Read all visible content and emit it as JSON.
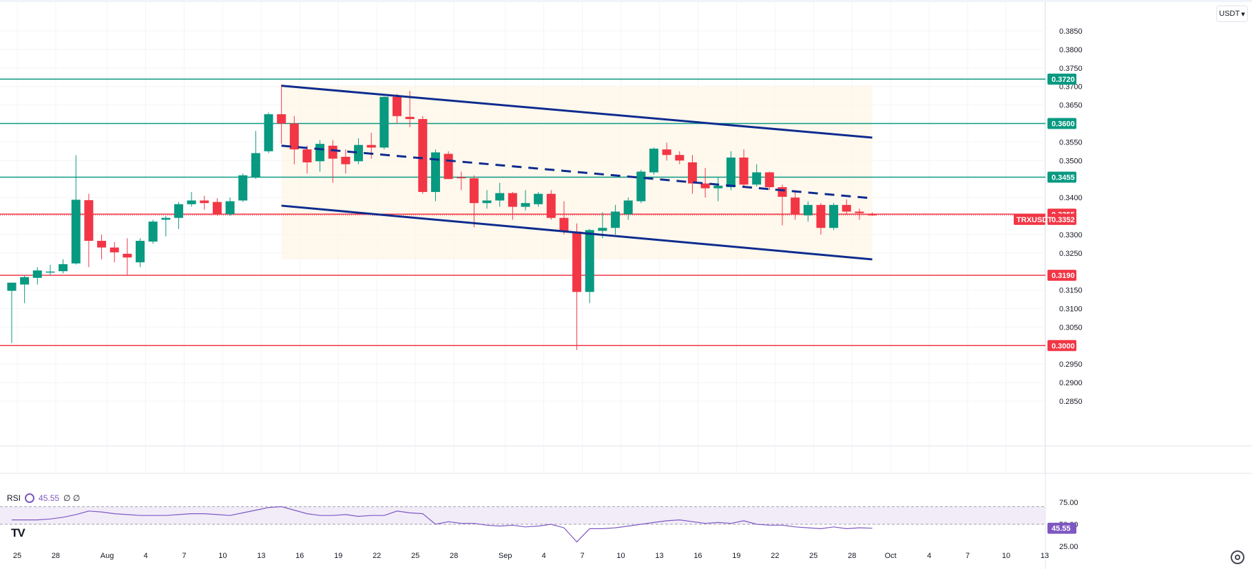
{
  "toolbar": {
    "currency_label": "USDT",
    "currency_caret": "▾"
  },
  "indicator": {
    "name": "RSI",
    "value_text": "45.55",
    "extra_text": "∅ ∅"
  },
  "logo_text": "TV",
  "colors": {
    "up": "#089981",
    "down": "#f23645",
    "channel": "#0d2b8e",
    "support_green": "#089981",
    "support_red": "#f23645",
    "rsi_line": "#7e57c2",
    "rsi_band": "#ede7f6",
    "channel_fill": "#fdf5e6"
  },
  "chart_data": {
    "type": "candlestick",
    "symbol": "TRXUSDT",
    "quote_currency": "USDT",
    "ylim": [
      0.281,
      0.389
    ],
    "y_ticks": [
      "0.3850",
      "0.3800",
      "0.3750",
      "0.3700",
      "0.3650",
      "0.3550",
      "0.3500",
      "0.3400",
      "0.3300",
      "0.3250",
      "0.3150",
      "0.3100",
      "0.3050",
      "0.2950",
      "0.2900",
      "0.2850"
    ],
    "x_ticks": [
      {
        "label": "25",
        "day": 0
      },
      {
        "label": "28",
        "day": 3
      },
      {
        "label": "Aug",
        "day": 7
      },
      {
        "label": "4",
        "day": 10
      },
      {
        "label": "7",
        "day": 13
      },
      {
        "label": "10",
        "day": 16
      },
      {
        "label": "13",
        "day": 19
      },
      {
        "label": "16",
        "day": 22
      },
      {
        "label": "19",
        "day": 25
      },
      {
        "label": "22",
        "day": 28
      },
      {
        "label": "25",
        "day": 31
      },
      {
        "label": "28",
        "day": 34
      },
      {
        "label": "Sep",
        "day": 38
      },
      {
        "label": "4",
        "day": 41
      },
      {
        "label": "7",
        "day": 44
      },
      {
        "label": "10",
        "day": 47
      },
      {
        "label": "13",
        "day": 50
      },
      {
        "label": "16",
        "day": 53
      },
      {
        "label": "19",
        "day": 56
      },
      {
        "label": "22",
        "day": 59
      },
      {
        "label": "25",
        "day": 62
      },
      {
        "label": "28",
        "day": 65
      },
      {
        "label": "Oct",
        "day": 68
      },
      {
        "label": "4",
        "day": 71
      },
      {
        "label": "7",
        "day": 74
      },
      {
        "label": "10",
        "day": 77
      },
      {
        "label": "13",
        "day": 80
      }
    ],
    "candles": [
      {
        "d": "Jul 25",
        "o": 0.3148,
        "h": 0.316,
        "l": 0.3007,
        "c": 0.317
      },
      {
        "d": "Jul 26",
        "o": 0.3165,
        "h": 0.319,
        "l": 0.3115,
        "c": 0.3185
      },
      {
        "d": "Jul 27",
        "o": 0.3183,
        "h": 0.3212,
        "l": 0.3165,
        "c": 0.3203
      },
      {
        "d": "Jul 28",
        "o": 0.32,
        "h": 0.3218,
        "l": 0.319,
        "c": 0.32
      },
      {
        "d": "Jul 29",
        "o": 0.3201,
        "h": 0.3233,
        "l": 0.3195,
        "c": 0.322
      },
      {
        "d": "Jul 30",
        "o": 0.3222,
        "h": 0.3514,
        "l": 0.3219,
        "c": 0.3394
      },
      {
        "d": "Jul 31",
        "o": 0.3393,
        "h": 0.341,
        "l": 0.3212,
        "c": 0.3283
      },
      {
        "d": "Aug 1",
        "o": 0.3283,
        "h": 0.33,
        "l": 0.3233,
        "c": 0.3265
      },
      {
        "d": "Aug 2",
        "o": 0.3265,
        "h": 0.328,
        "l": 0.3225,
        "c": 0.3252
      },
      {
        "d": "Aug 3",
        "o": 0.3248,
        "h": 0.329,
        "l": 0.319,
        "c": 0.3238
      },
      {
        "d": "Aug 4",
        "o": 0.3225,
        "h": 0.329,
        "l": 0.3212,
        "c": 0.3283
      },
      {
        "d": "Aug 5",
        "o": 0.3281,
        "h": 0.334,
        "l": 0.3275,
        "c": 0.3335
      },
      {
        "d": "Aug 6",
        "o": 0.334,
        "h": 0.335,
        "l": 0.3295,
        "c": 0.3345
      },
      {
        "d": "Aug 7",
        "o": 0.3345,
        "h": 0.3388,
        "l": 0.3315,
        "c": 0.3382
      },
      {
        "d": "Aug 8",
        "o": 0.3382,
        "h": 0.3415,
        "l": 0.3375,
        "c": 0.3392
      },
      {
        "d": "Aug 9",
        "o": 0.3392,
        "h": 0.3405,
        "l": 0.3367,
        "c": 0.3385
      },
      {
        "d": "Aug 10",
        "o": 0.3388,
        "h": 0.3398,
        "l": 0.335,
        "c": 0.3355
      },
      {
        "d": "Aug 11",
        "o": 0.3355,
        "h": 0.34,
        "l": 0.335,
        "c": 0.339
      },
      {
        "d": "Aug 12",
        "o": 0.3392,
        "h": 0.3465,
        "l": 0.3388,
        "c": 0.346
      },
      {
        "d": "Aug 13",
        "o": 0.3455,
        "h": 0.358,
        "l": 0.345,
        "c": 0.352
      },
      {
        "d": "Aug 14",
        "o": 0.3525,
        "h": 0.363,
        "l": 0.352,
        "c": 0.3625
      },
      {
        "d": "Aug 15",
        "o": 0.3625,
        "h": 0.3705,
        "l": 0.3545,
        "c": 0.36
      },
      {
        "d": "Aug 16",
        "o": 0.36,
        "h": 0.362,
        "l": 0.349,
        "c": 0.353
      },
      {
        "d": "Aug 17",
        "o": 0.353,
        "h": 0.354,
        "l": 0.3465,
        "c": 0.3495
      },
      {
        "d": "Aug 18",
        "o": 0.3498,
        "h": 0.3555,
        "l": 0.347,
        "c": 0.3545
      },
      {
        "d": "Aug 19",
        "o": 0.354,
        "h": 0.3555,
        "l": 0.344,
        "c": 0.3505
      },
      {
        "d": "Aug 20",
        "o": 0.351,
        "h": 0.353,
        "l": 0.3465,
        "c": 0.349
      },
      {
        "d": "Aug 21",
        "o": 0.3498,
        "h": 0.356,
        "l": 0.349,
        "c": 0.3542
      },
      {
        "d": "Aug 22",
        "o": 0.3542,
        "h": 0.3575,
        "l": 0.3505,
        "c": 0.3535
      },
      {
        "d": "Aug 23",
        "o": 0.3535,
        "h": 0.3673,
        "l": 0.353,
        "c": 0.3672
      },
      {
        "d": "Aug 24",
        "o": 0.3672,
        "h": 0.368,
        "l": 0.36,
        "c": 0.362
      },
      {
        "d": "Aug 25",
        "o": 0.3618,
        "h": 0.3688,
        "l": 0.359,
        "c": 0.3612
      },
      {
        "d": "Aug 26",
        "o": 0.3612,
        "h": 0.362,
        "l": 0.341,
        "c": 0.3415
      },
      {
        "d": "Aug 27",
        "o": 0.3415,
        "h": 0.353,
        "l": 0.339,
        "c": 0.3522
      },
      {
        "d": "Aug 28",
        "o": 0.3518,
        "h": 0.3525,
        "l": 0.345,
        "c": 0.345
      },
      {
        "d": "Aug 29",
        "o": 0.3455,
        "h": 0.347,
        "l": 0.342,
        "c": 0.3452
      },
      {
        "d": "Aug 30",
        "o": 0.3452,
        "h": 0.346,
        "l": 0.332,
        "c": 0.3385
      },
      {
        "d": "Aug 31",
        "o": 0.3385,
        "h": 0.342,
        "l": 0.337,
        "c": 0.3392
      },
      {
        "d": "Sep 1",
        "o": 0.3392,
        "h": 0.344,
        "l": 0.3375,
        "c": 0.3412
      },
      {
        "d": "Sep 2",
        "o": 0.3412,
        "h": 0.3415,
        "l": 0.334,
        "c": 0.3375
      },
      {
        "d": "Sep 3",
        "o": 0.3375,
        "h": 0.342,
        "l": 0.3365,
        "c": 0.3385
      },
      {
        "d": "Sep 4",
        "o": 0.3382,
        "h": 0.3415,
        "l": 0.3375,
        "c": 0.341
      },
      {
        "d": "Sep 5",
        "o": 0.341,
        "h": 0.342,
        "l": 0.334,
        "c": 0.3345
      },
      {
        "d": "Sep 6",
        "o": 0.3345,
        "h": 0.339,
        "l": 0.33,
        "c": 0.331
      },
      {
        "d": "Sep 7",
        "o": 0.3308,
        "h": 0.333,
        "l": 0.2988,
        "c": 0.3145
      },
      {
        "d": "Sep 8",
        "o": 0.3145,
        "h": 0.3315,
        "l": 0.3115,
        "c": 0.3312
      },
      {
        "d": "Sep 9",
        "o": 0.331,
        "h": 0.336,
        "l": 0.329,
        "c": 0.3318
      },
      {
        "d": "Sep 10",
        "o": 0.3318,
        "h": 0.338,
        "l": 0.33,
        "c": 0.3362
      },
      {
        "d": "Sep 11",
        "o": 0.3355,
        "h": 0.34,
        "l": 0.334,
        "c": 0.3392
      },
      {
        "d": "Sep 12",
        "o": 0.339,
        "h": 0.3475,
        "l": 0.3385,
        "c": 0.347
      },
      {
        "d": "Sep 13",
        "o": 0.3468,
        "h": 0.3535,
        "l": 0.3462,
        "c": 0.3532
      },
      {
        "d": "Sep 14",
        "o": 0.353,
        "h": 0.3548,
        "l": 0.35,
        "c": 0.3515
      },
      {
        "d": "Sep 15",
        "o": 0.3515,
        "h": 0.3525,
        "l": 0.349,
        "c": 0.35
      },
      {
        "d": "Sep 16",
        "o": 0.3495,
        "h": 0.3515,
        "l": 0.341,
        "c": 0.3438
      },
      {
        "d": "Sep 17",
        "o": 0.3438,
        "h": 0.348,
        "l": 0.34,
        "c": 0.3425
      },
      {
        "d": "Sep 18",
        "o": 0.3425,
        "h": 0.3455,
        "l": 0.339,
        "c": 0.3432
      },
      {
        "d": "Sep 19",
        "o": 0.3428,
        "h": 0.3525,
        "l": 0.342,
        "c": 0.3508
      },
      {
        "d": "Sep 20",
        "o": 0.3508,
        "h": 0.353,
        "l": 0.3428,
        "c": 0.3435
      },
      {
        "d": "Sep 21",
        "o": 0.3435,
        "h": 0.349,
        "l": 0.343,
        "c": 0.3468
      },
      {
        "d": "Sep 22",
        "o": 0.3468,
        "h": 0.347,
        "l": 0.342,
        "c": 0.3428
      },
      {
        "d": "Sep 23",
        "o": 0.3428,
        "h": 0.3435,
        "l": 0.3325,
        "c": 0.3402
      },
      {
        "d": "Sep 24",
        "o": 0.34,
        "h": 0.342,
        "l": 0.334,
        "c": 0.3355
      },
      {
        "d": "Sep 25",
        "o": 0.3352,
        "h": 0.339,
        "l": 0.3335,
        "c": 0.338
      },
      {
        "d": "Sep 26",
        "o": 0.338,
        "h": 0.3385,
        "l": 0.33,
        "c": 0.3318
      },
      {
        "d": "Sep 27",
        "o": 0.3318,
        "h": 0.3385,
        "l": 0.3312,
        "c": 0.338
      },
      {
        "d": "Sep 28",
        "o": 0.338,
        "h": 0.3395,
        "l": 0.3355,
        "c": 0.3362
      },
      {
        "d": "Sep 29",
        "o": 0.3362,
        "h": 0.337,
        "l": 0.334,
        "c": 0.3358
      },
      {
        "d": "Sep 30",
        "o": 0.3355,
        "h": 0.336,
        "l": 0.335,
        "c": 0.3352
      }
    ],
    "horizontal_levels": [
      {
        "value": 0.372,
        "label": "0.3720",
        "color": "#089981"
      },
      {
        "value": 0.36,
        "label": "0.3600",
        "color": "#089981"
      },
      {
        "value": 0.3455,
        "label": "0.3455",
        "color": "#089981"
      },
      {
        "value": 0.3355,
        "label": "0.3355",
        "color": "#f23645"
      },
      {
        "value": 0.319,
        "label": "0.3190",
        "color": "#f23645"
      },
      {
        "value": 0.3,
        "label": "0.3000",
        "color": "#f23645"
      }
    ],
    "last_price": {
      "value": 0.3352,
      "label": "0.3352",
      "symbol_tag": "TRXUSDT"
    },
    "channel": {
      "start_day": 21,
      "end_day": 67,
      "upper": [
        0.3702,
        0.3562
      ],
      "middle": [
        0.354,
        0.3398
      ],
      "lower": [
        0.3378,
        0.3233
      ]
    },
    "rsi": {
      "value": 45.55,
      "value_label": "45.55",
      "ylim": [
        25,
        80
      ],
      "upper_band": 70,
      "lower_band": 50,
      "ticks": [
        "75.00",
        "50.00",
        "25.00"
      ],
      "values": [
        55,
        55,
        55,
        56,
        58,
        61,
        65,
        64,
        62,
        61,
        60,
        60,
        60,
        61,
        62,
        62,
        61,
        60,
        63,
        66,
        69,
        70,
        66,
        62,
        60,
        60,
        61,
        59,
        60,
        60,
        65,
        63,
        62,
        50,
        53,
        51,
        51,
        49,
        48,
        49,
        47,
        48,
        50,
        46,
        30,
        45,
        45,
        46,
        48,
        50,
        52,
        54,
        55,
        53,
        51,
        52,
        51,
        54,
        50,
        49,
        49,
        47,
        46,
        45,
        47,
        45,
        46,
        45.55
      ]
    }
  }
}
